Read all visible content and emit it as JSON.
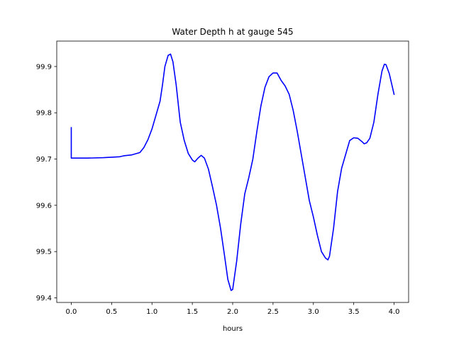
{
  "chart_data": {
    "type": "line",
    "title": "Water Depth h at gauge 545",
    "xlabel": "hours",
    "ylabel": "",
    "xlim": [
      -0.18,
      4.18
    ],
    "ylim": [
      99.39,
      99.955
    ],
    "xticks": [
      {
        "value": 0.0,
        "label": "0.0"
      },
      {
        "value": 0.5,
        "label": "0.5"
      },
      {
        "value": 1.0,
        "label": "1.0"
      },
      {
        "value": 1.5,
        "label": "1.5"
      },
      {
        "value": 2.0,
        "label": "2.0"
      },
      {
        "value": 2.5,
        "label": "2.5"
      },
      {
        "value": 3.0,
        "label": "3.0"
      },
      {
        "value": 3.5,
        "label": "3.5"
      },
      {
        "value": 4.0,
        "label": "4.0"
      }
    ],
    "yticks": [
      {
        "value": 99.4,
        "label": "99.4"
      },
      {
        "value": 99.5,
        "label": "99.5"
      },
      {
        "value": 99.6,
        "label": "99.6"
      },
      {
        "value": 99.7,
        "label": "99.7"
      },
      {
        "value": 99.8,
        "label": "99.8"
      },
      {
        "value": 99.9,
        "label": "99.9"
      }
    ],
    "grid": false,
    "legend": "none",
    "line_color": "#0000ff",
    "series": [
      {
        "color": "#0000ff",
        "points": [
          [
            0.0,
            99.768
          ],
          [
            0.0,
            99.702
          ],
          [
            0.2,
            99.702
          ],
          [
            0.4,
            99.703
          ],
          [
            0.6,
            99.705
          ],
          [
            0.65,
            99.707
          ],
          [
            0.75,
            99.709
          ],
          [
            0.85,
            99.714
          ],
          [
            0.9,
            99.725
          ],
          [
            0.95,
            99.742
          ],
          [
            1.0,
            99.765
          ],
          [
            1.05,
            99.795
          ],
          [
            1.1,
            99.825
          ],
          [
            1.13,
            99.86
          ],
          [
            1.16,
            99.9
          ],
          [
            1.2,
            99.924
          ],
          [
            1.23,
            99.927
          ],
          [
            1.26,
            99.91
          ],
          [
            1.3,
            99.86
          ],
          [
            1.35,
            99.78
          ],
          [
            1.4,
            99.74
          ],
          [
            1.45,
            99.712
          ],
          [
            1.5,
            99.698
          ],
          [
            1.53,
            99.694
          ],
          [
            1.57,
            99.702
          ],
          [
            1.61,
            99.708
          ],
          [
            1.65,
            99.702
          ],
          [
            1.7,
            99.678
          ],
          [
            1.75,
            99.64
          ],
          [
            1.8,
            99.6
          ],
          [
            1.85,
            99.55
          ],
          [
            1.9,
            99.49
          ],
          [
            1.94,
            99.44
          ],
          [
            1.98,
            99.416
          ],
          [
            2.0,
            99.418
          ],
          [
            2.05,
            99.48
          ],
          [
            2.1,
            99.56
          ],
          [
            2.15,
            99.625
          ],
          [
            2.2,
            99.66
          ],
          [
            2.25,
            99.7
          ],
          [
            2.3,
            99.76
          ],
          [
            2.35,
            99.815
          ],
          [
            2.4,
            99.855
          ],
          [
            2.45,
            99.878
          ],
          [
            2.5,
            99.886
          ],
          [
            2.55,
            99.886
          ],
          [
            2.6,
            99.87
          ],
          [
            2.65,
            99.858
          ],
          [
            2.7,
            99.84
          ],
          [
            2.75,
            99.805
          ],
          [
            2.8,
            99.76
          ],
          [
            2.85,
            99.71
          ],
          [
            2.9,
            99.66
          ],
          [
            2.95,
            99.61
          ],
          [
            3.0,
            99.575
          ],
          [
            3.05,
            99.535
          ],
          [
            3.1,
            99.5
          ],
          [
            3.15,
            99.486
          ],
          [
            3.18,
            99.482
          ],
          [
            3.2,
            99.49
          ],
          [
            3.25,
            99.55
          ],
          [
            3.3,
            99.63
          ],
          [
            3.35,
            99.68
          ],
          [
            3.4,
            99.71
          ],
          [
            3.45,
            99.74
          ],
          [
            3.5,
            99.746
          ],
          [
            3.55,
            99.745
          ],
          [
            3.6,
            99.738
          ],
          [
            3.63,
            99.733
          ],
          [
            3.66,
            99.735
          ],
          [
            3.7,
            99.745
          ],
          [
            3.75,
            99.78
          ],
          [
            3.8,
            99.84
          ],
          [
            3.85,
            99.89
          ],
          [
            3.88,
            99.905
          ],
          [
            3.9,
            99.904
          ],
          [
            3.94,
            99.885
          ],
          [
            4.0,
            99.84
          ]
        ]
      }
    ]
  }
}
